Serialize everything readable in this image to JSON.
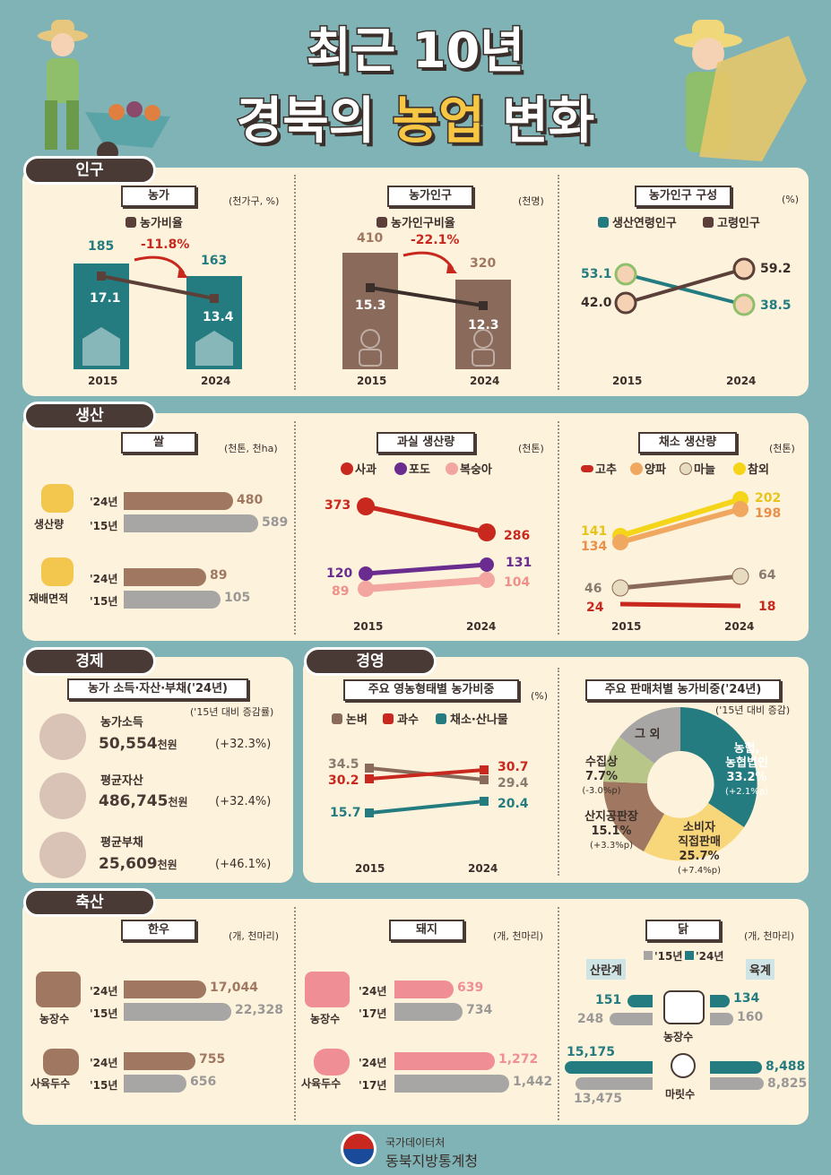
{
  "title": {
    "line1": "최근 10년",
    "line2a": "경북의 ",
    "line2b": "농업",
    "line2c": " 변화"
  },
  "sections": {
    "population": "인구",
    "production": "생산",
    "economy": "경제",
    "management": "경영",
    "livestock": "축산"
  },
  "farm_households": {
    "title": "농가",
    "unit": "(천가구, %)",
    "legend": "농가비율",
    "v2015": "185",
    "v2024": "163",
    "r2015": "17.1",
    "r2024": "13.4",
    "change": "-11.8%",
    "x2015": "2015",
    "x2024": "2024"
  },
  "farm_population": {
    "title": "농가인구",
    "unit": "(천명)",
    "legend": "농가인구비율",
    "v2015": "410",
    "v2024": "320",
    "r2015": "15.3",
    "r2024": "12.3",
    "change": "-22.1%",
    "x2015": "2015",
    "x2024": "2024"
  },
  "population_comp": {
    "title": "농가인구 구성",
    "unit": "(%)",
    "legend1": "생산연령인구",
    "legend2": "고령인구",
    "p2015": "53.1",
    "p2024": "38.5",
    "e2015": "42.0",
    "e2024": "59.2",
    "x2015": "2015",
    "x2024": "2024"
  },
  "rice": {
    "title": "쌀",
    "unit": "(천톤, 천ha)",
    "prod_label": "생산량",
    "area_label": "재배면적",
    "y24": "'24년",
    "y15": "'15년",
    "prod24": "480",
    "prod15": "589",
    "area24": "89",
    "area15": "105"
  },
  "fruit": {
    "title": "과실 생산량",
    "unit": "(천톤)",
    "apple": "사과",
    "grape": "포도",
    "peach": "복숭아",
    "apple15": "373",
    "apple24": "286",
    "grape15": "120",
    "grape24": "131",
    "peach15": "89",
    "peach24": "104",
    "x2015": "2015",
    "x2024": "2024"
  },
  "veg": {
    "title": "채소 생산량",
    "unit": "(천톤)",
    "pepper": "고추",
    "onion": "양파",
    "garlic": "마늘",
    "melon": "참외",
    "melon15": "141",
    "melon24": "202",
    "onion15": "134",
    "onion24": "198",
    "garlic15": "46",
    "garlic24": "64",
    "pepper15": "24",
    "pepper24": "18",
    "x2015": "2015",
    "x2024": "2024"
  },
  "economy": {
    "title": "농가 소득·자산·부채('24년)",
    "note": "('15년 대비 증감률)",
    "income_label": "농가소득",
    "income": "50,554",
    "income_unit": "천원",
    "income_chg": "(+32.3%)",
    "asset_label": "평균자산",
    "asset": "486,745",
    "asset_unit": "천원",
    "asset_chg": "(+32.4%)",
    "debt_label": "평균부채",
    "debt": "25,609",
    "debt_unit": "천원",
    "debt_chg": "(+46.1%)"
  },
  "mgmt_type": {
    "title": "주요 영농형태별 농가비중",
    "unit": "(%)",
    "rice": "논벼",
    "fruit": "과수",
    "veg": "채소·산나물",
    "rice15": "34.5",
    "rice24": "29.4",
    "fruit15": "30.2",
    "fruit24": "30.7",
    "veg15": "15.7",
    "veg24": "20.4",
    "x2015": "2015",
    "x2024": "2024"
  },
  "sales": {
    "title": "주요 판매처별 농가비중('24년)",
    "note": "('15년 대비 증감)",
    "s1": "농협,",
    "s1b": "농협법인",
    "s1v": "33.2%",
    "s1c": "(+2.1%p)",
    "s2": "소비자",
    "s2b": "직접판매",
    "s2v": "25.7%",
    "s2c": "(+7.4%p)",
    "s3": "산지공판장",
    "s3v": "15.1%",
    "s3c": "(+3.3%p)",
    "s4": "수집상",
    "s4v": "7.7%",
    "s4c": "(-3.0%p)",
    "s5": "그 외"
  },
  "hanwoo": {
    "title": "한우",
    "unit": "(개, 천마리)",
    "farms": "농장수",
    "heads": "사육두수",
    "y24": "'24년",
    "y15": "'15년",
    "f24": "17,044",
    "f15": "22,328",
    "h24": "755",
    "h15": "656"
  },
  "pig": {
    "title": "돼지",
    "unit": "(개, 천마리)",
    "farms": "농장수",
    "heads": "사육두수",
    "y24": "'24년",
    "y17": "'17년",
    "f24": "639",
    "f17": "734",
    "h24": "1,272",
    "h17": "1,442"
  },
  "chicken": {
    "title": "닭",
    "unit": "(개, 천마리)",
    "leg15": "'15년",
    "leg24": "'24년",
    "layer": "산란계",
    "broiler": "육계",
    "farms": "농장수",
    "birds": "마릿수",
    "lf24": "151",
    "lf15": "248",
    "bf24": "134",
    "bf15": "160",
    "lb24": "15,175",
    "lb15": "13,475",
    "bb24": "8,488",
    "bb15": "8,825"
  },
  "footer": {
    "line1": "국가데이터처",
    "line2": "동북지방통계청"
  },
  "colors": {
    "teal": "#257c80",
    "brown": "#5a4038",
    "red": "#c8281e",
    "purple": "#6a2c8e",
    "peach": "#f3a6a0",
    "yellow": "#f5d51a",
    "orange": "#f0a860"
  }
}
